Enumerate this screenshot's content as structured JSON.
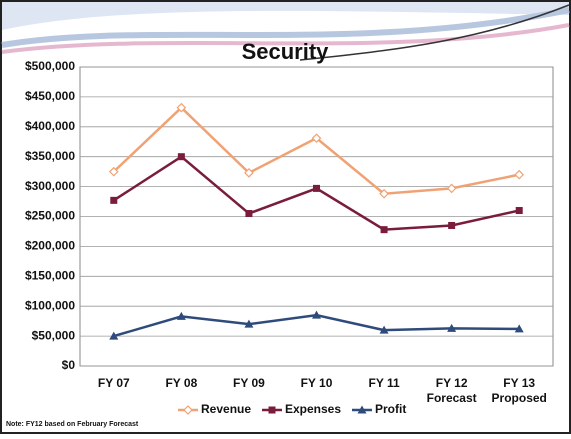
{
  "chart_data": {
    "type": "line",
    "title": "Security",
    "categories": [
      [
        "FY 07"
      ],
      [
        "FY 08"
      ],
      [
        "FY 09"
      ],
      [
        "FY 10"
      ],
      [
        "FY 11"
      ],
      [
        "FY 12",
        "Forecast"
      ],
      [
        "FY 13",
        "Proposed"
      ]
    ],
    "series": [
      {
        "name": "Revenue",
        "color": "#f0a274",
        "marker": "diamond",
        "values": [
          325000,
          432000,
          323000,
          381000,
          288000,
          297000,
          320000
        ]
      },
      {
        "name": "Expenses",
        "color": "#7a1c3c",
        "marker": "square",
        "values": [
          277000,
          350000,
          255000,
          297000,
          228000,
          235000,
          260000
        ]
      },
      {
        "name": "Profit",
        "color": "#2f4b7c",
        "marker": "triangle",
        "values": [
          50000,
          83000,
          70000,
          85000,
          60000,
          63000,
          62000
        ]
      }
    ],
    "ylim": [
      0,
      500000
    ],
    "yticks": [
      {
        "value": 0,
        "label": "$0"
      },
      {
        "value": 50000,
        "label": "$50,000"
      },
      {
        "value": 100000,
        "label": "$100,000"
      },
      {
        "value": 150000,
        "label": "$150,000"
      },
      {
        "value": 200000,
        "label": "$200,000"
      },
      {
        "value": 250000,
        "label": "$250,000"
      },
      {
        "value": 300000,
        "label": "$300,000"
      },
      {
        "value": 350000,
        "label": "$350,000"
      },
      {
        "value": 400000,
        "label": "$400,000"
      },
      {
        "value": 450000,
        "label": "$450,000"
      },
      {
        "value": 500000,
        "label": "$500,000"
      }
    ],
    "grid": true,
    "legend": "bottom",
    "note": "Note: FY12 based on February Forecast"
  }
}
